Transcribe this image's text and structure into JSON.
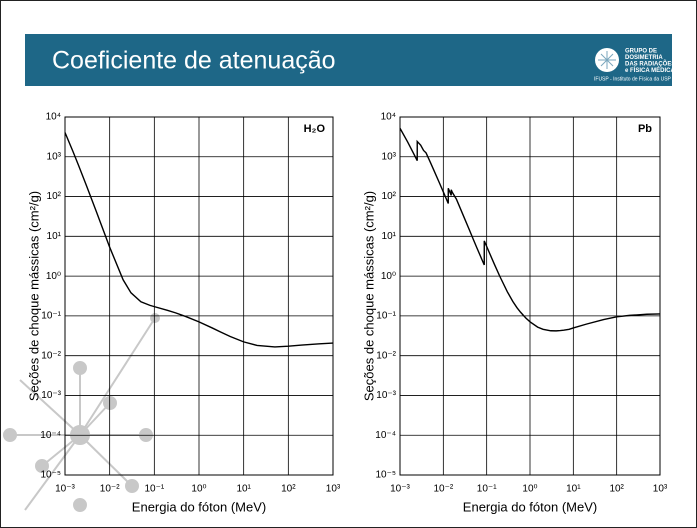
{
  "header": {
    "title": "Coeficiente de atenuação",
    "logo_lines": [
      "GRUPO DE",
      "DOSIMETRIA",
      "DAS RADIAÇÕES",
      "e FÍSICA MÉDICA"
    ],
    "logo_caption": "IFUSP - Instituto de Física da USP"
  },
  "chart_data": [
    {
      "type": "line",
      "annotation": "H₂O",
      "xlabel": "Energia do fóton (MeV)",
      "ylabel": "Seções de choque mássicas (cm²/g)",
      "log_x": true,
      "log_y": true,
      "grid": true,
      "color": "#000000",
      "x": [
        0.001,
        0.0015,
        0.002,
        0.003,
        0.005,
        0.006,
        0.008,
        0.01,
        0.02,
        0.03,
        0.05,
        0.08,
        0.1,
        0.2,
        0.3,
        0.5,
        1,
        2,
        3,
        5,
        10,
        20,
        50,
        100,
        200,
        500,
        1000
      ],
      "values": [
        4078,
        1376,
        617,
        193,
        42.6,
        24.6,
        10.4,
        5.33,
        0.81,
        0.38,
        0.227,
        0.184,
        0.171,
        0.137,
        0.119,
        0.097,
        0.0707,
        0.0494,
        0.0397,
        0.0303,
        0.0222,
        0.0181,
        0.0166,
        0.0173,
        0.0185,
        0.0199,
        0.0207
      ],
      "xlim": [
        0.001,
        1000
      ],
      "ylim": [
        1e-05,
        10000
      ],
      "xticks": [
        {
          "value": 0.001,
          "label": "10⁻³"
        },
        {
          "value": 0.01,
          "label": "10⁻²"
        },
        {
          "value": 0.1,
          "label": "10⁻¹"
        },
        {
          "value": 1,
          "label": "10⁰"
        },
        {
          "value": 10,
          "label": "10¹"
        },
        {
          "value": 100,
          "label": "10²"
        },
        {
          "value": 1000,
          "label": "10³"
        }
      ],
      "yticks": [
        {
          "value": 1e-05,
          "label": "10⁻⁵"
        },
        {
          "value": 0.0001,
          "label": "10⁻⁴"
        },
        {
          "value": 0.001,
          "label": "10⁻³"
        },
        {
          "value": 0.01,
          "label": "10⁻²"
        },
        {
          "value": 0.1,
          "label": "10⁻¹"
        },
        {
          "value": 1,
          "label": "10⁰"
        },
        {
          "value": 10,
          "label": "10¹"
        },
        {
          "value": 100,
          "label": "10²"
        },
        {
          "value": 1000,
          "label": "10³"
        },
        {
          "value": 10000,
          "label": "10⁴"
        }
      ]
    },
    {
      "type": "line",
      "annotation": "Pb",
      "xlabel": "Energia do fóton (MeV)",
      "ylabel": "Seções de choque mássicas (cm²/g)",
      "log_x": true,
      "log_y": true,
      "grid": true,
      "color": "#000000",
      "x": [
        0.001,
        0.0015,
        0.002,
        0.0025,
        0.0025,
        0.003,
        0.0035,
        0.004,
        0.005,
        0.006,
        0.008,
        0.01,
        0.013,
        0.013,
        0.015,
        0.0152,
        0.0152,
        0.016,
        0.02,
        0.03,
        0.04,
        0.05,
        0.06,
        0.08,
        0.088,
        0.088,
        0.1,
        0.15,
        0.2,
        0.3,
        0.4,
        0.5,
        0.6,
        0.8,
        1,
        1.5,
        2,
        3,
        4,
        5,
        6,
        8,
        10,
        20,
        50,
        100,
        200,
        500,
        1000
      ],
      "values": [
        5210,
        2356,
        1285,
        800,
        2418,
        1965,
        1443,
        1251,
        730,
        467,
        229,
        130.6,
        67,
        162,
        111,
        107,
        148,
        129,
        86.4,
        30.3,
        14.4,
        8.04,
        5.02,
        2.42,
        1.91,
        7.68,
        5.55,
        2.01,
        0.999,
        0.403,
        0.232,
        0.161,
        0.125,
        0.0887,
        0.071,
        0.0522,
        0.0461,
        0.0423,
        0.042,
        0.0427,
        0.0436,
        0.0459,
        0.0497,
        0.0621,
        0.081,
        0.095,
        0.103,
        0.11,
        0.112
      ],
      "xlim": [
        0.001,
        1000
      ],
      "ylim": [
        1e-05,
        10000
      ],
      "xticks": [
        {
          "value": 0.001,
          "label": "10⁻³"
        },
        {
          "value": 0.01,
          "label": "10⁻²"
        },
        {
          "value": 0.1,
          "label": "10⁻¹"
        },
        {
          "value": 1,
          "label": "10⁰"
        },
        {
          "value": 10,
          "label": "10¹"
        },
        {
          "value": 100,
          "label": "10²"
        },
        {
          "value": 1000,
          "label": "10³"
        }
      ],
      "yticks": [
        {
          "value": 1e-05,
          "label": "10⁻⁵"
        },
        {
          "value": 0.0001,
          "label": "10⁻⁴"
        },
        {
          "value": 0.001,
          "label": "10⁻³"
        },
        {
          "value": 0.01,
          "label": "10⁻²"
        },
        {
          "value": 0.1,
          "label": "10⁻¹"
        },
        {
          "value": 1,
          "label": "10⁰"
        },
        {
          "value": 10,
          "label": "10¹"
        },
        {
          "value": 100,
          "label": "10²"
        },
        {
          "value": 1000,
          "label": "10³"
        },
        {
          "value": 10000,
          "label": "10⁴"
        }
      ]
    }
  ]
}
